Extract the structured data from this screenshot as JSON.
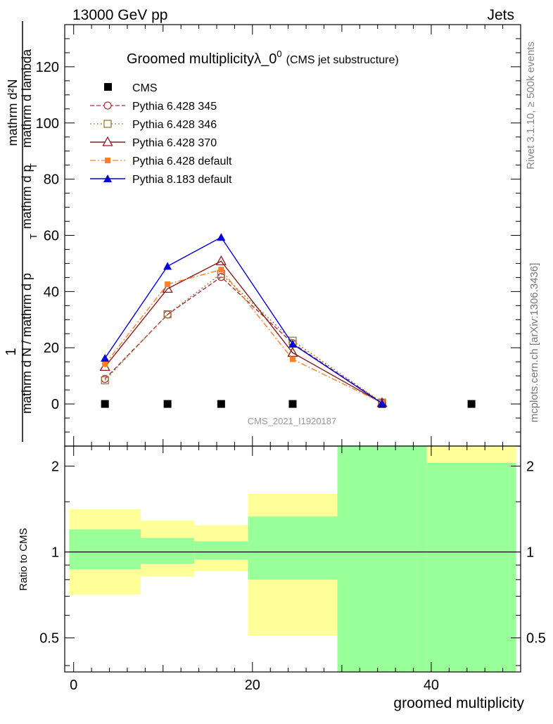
{
  "header": {
    "left": "13000 GeV pp",
    "right": "Jets"
  },
  "side_labels": {
    "rivet": "Rivet 3.1.10, ≥ 500k events",
    "mcplots": "mcplots.cern.ch [arXiv:1306.3436]"
  },
  "colors": {
    "cms": "#000000",
    "p345": "#b0313b",
    "p346": "#9a7b3a",
    "p370": "#8b1a1a",
    "p6default": "#ff7f27",
    "p8default": "#0000dd",
    "band_inner": "#99ff99",
    "band_outer": "#ffff99"
  },
  "chart_data": [
    {
      "type": "line",
      "title": "Groomed multiplicityλ_0",
      "title_sup": "0",
      "subtitle": "(CMS jet substructure)",
      "watermark": "CMS_2021_I1920187",
      "ylabel_num_main": "1",
      "ylabel_num_sub": "mathrm d²N",
      "ylabel_den_main": "mathrm d N / mathrm d p",
      "ylabel_den_sub": "T",
      "ylabel_den_mid": "mathrm d p",
      "ylabel_den_mid_sub": "T",
      "ylabel_den_tail": "mathrm d lambda",
      "xlim": [
        -1,
        50
      ],
      "ylim": [
        -15,
        135
      ],
      "yticks": [
        0,
        20,
        40,
        60,
        80,
        100,
        120
      ],
      "x": [
        3.5,
        10.5,
        16.5,
        24.5,
        34.5,
        44.5
      ],
      "series": [
        {
          "name": "CMS",
          "key": "cms",
          "marker": "square",
          "x": [
            3.5,
            10.5,
            16.5,
            24.5,
            34.5,
            44.5
          ],
          "values": [
            0,
            0,
            0,
            0,
            0,
            0
          ]
        },
        {
          "name": "Pythia 6.428 345",
          "key": "p345",
          "marker": "circle-open",
          "dash": "6,3",
          "x": [
            3.5,
            10.5,
            16.5,
            24.5,
            34.5
          ],
          "values": [
            8.9,
            31.8,
            45.2,
            21.6,
            0.4
          ]
        },
        {
          "name": "Pythia 6.428 346",
          "key": "p346",
          "marker": "square-open",
          "dash": "2,3",
          "x": [
            3.5,
            10.5,
            16.5,
            24.5,
            34.5
          ],
          "values": [
            8.4,
            31.9,
            46.3,
            22.5,
            0.5
          ]
        },
        {
          "name": "Pythia 6.428 370",
          "key": "p370",
          "marker": "triangle-open",
          "dash": "",
          "x": [
            3.5,
            10.5,
            16.5,
            24.5,
            34.5
          ],
          "values": [
            13.2,
            41.0,
            50.8,
            18.2,
            0.3
          ]
        },
        {
          "name": "Pythia 6.428 default",
          "key": "p6default",
          "marker": "square-filled",
          "dash": "8,3,2,3",
          "x": [
            3.5,
            10.5,
            16.5,
            24.5,
            34.5
          ],
          "values": [
            14.2,
            42.6,
            47.8,
            15.9,
            0.4
          ]
        },
        {
          "name": "Pythia 8.183 default",
          "key": "p8default",
          "marker": "triangle-filled",
          "dash": "",
          "x": [
            3.5,
            10.5,
            16.5,
            24.5,
            34.5
          ],
          "values": [
            16.3,
            49.0,
            59.3,
            21.3,
            0.2
          ],
          "errors": [
            0.6,
            1.0,
            1.2,
            0.7,
            0.1
          ]
        }
      ]
    },
    {
      "type": "area",
      "ylabel": "Ratio to CMS",
      "xlabel": "groomed multiplicity",
      "xlim": [
        -1,
        50
      ],
      "ylim": [
        0.38,
        2.35
      ],
      "yscale": "log",
      "xticks": [
        0,
        20,
        40
      ],
      "yticks": [
        0.5,
        1,
        2
      ],
      "ytick_labels": [
        "0.5",
        "1",
        "2"
      ],
      "bins": [
        {
          "lo": -0.5,
          "hi": 7.5,
          "inner": [
            0.87,
            1.2
          ],
          "outer": [
            0.71,
            1.41
          ]
        },
        {
          "lo": 7.5,
          "hi": 13.5,
          "inner": [
            0.91,
            1.12
          ],
          "outer": [
            0.82,
            1.29
          ]
        },
        {
          "lo": 13.5,
          "hi": 19.5,
          "inner": [
            0.94,
            1.09
          ],
          "outer": [
            0.86,
            1.24
          ]
        },
        {
          "lo": 19.5,
          "hi": 29.5,
          "inner": [
            0.8,
            1.33
          ],
          "outer": [
            0.51,
            1.6
          ]
        },
        {
          "lo": 29.5,
          "hi": 39.5,
          "inner": [
            0.38,
            2.35
          ],
          "outer": [
            0.38,
            2.35
          ]
        },
        {
          "lo": 39.5,
          "hi": 49.5,
          "inner": [
            0.38,
            2.05
          ],
          "outer": [
            0.38,
            2.35
          ]
        }
      ]
    }
  ]
}
